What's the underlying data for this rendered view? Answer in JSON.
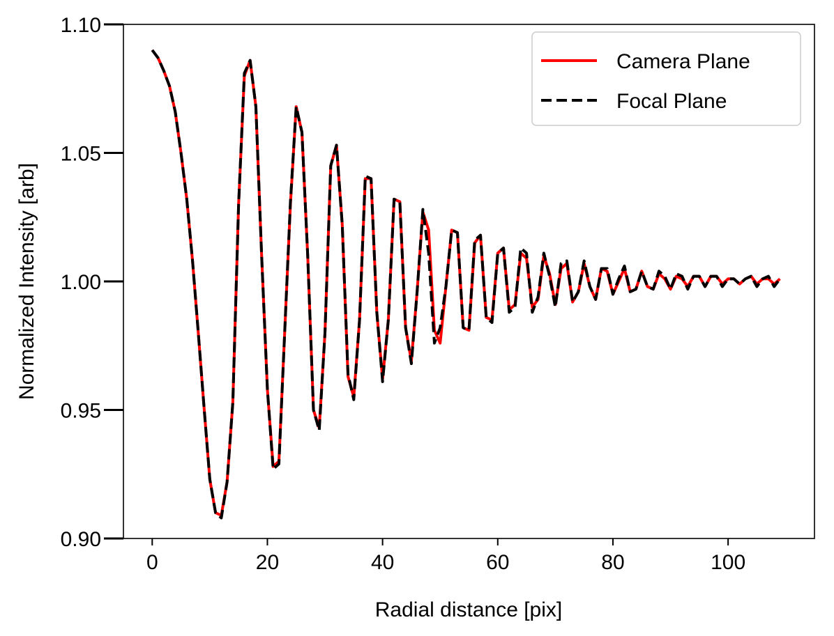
{
  "chart_data": {
    "type": "line",
    "xlabel": "Radial distance [pix]",
    "ylabel": "Normalized Intensity [arb]",
    "xlim": [
      -5,
      115
    ],
    "ylim": [
      0.9,
      1.1
    ],
    "x_ticks": [
      0,
      20,
      40,
      60,
      80,
      100
    ],
    "x_tick_labels": [
      "0",
      "20",
      "40",
      "60",
      "80",
      "100"
    ],
    "y_ticks": [
      0.9,
      0.95,
      1.0,
      1.05,
      1.1
    ],
    "y_tick_labels": [
      "0.90",
      "0.95",
      "1.00",
      "1.05",
      "1.10"
    ],
    "grid": false,
    "legend": {
      "position": "top-right"
    },
    "x": [
      0,
      1,
      2,
      3,
      4,
      5,
      6,
      7,
      8,
      9,
      10,
      11,
      12,
      13,
      14,
      15,
      16,
      17,
      18,
      19,
      20,
      21,
      22,
      23,
      24,
      25,
      26,
      27,
      28,
      29,
      30,
      31,
      32,
      33,
      34,
      35,
      36,
      37,
      38,
      39,
      40,
      41,
      42,
      43,
      44,
      45,
      46,
      47,
      48,
      49,
      50,
      51,
      52,
      53,
      54,
      55,
      56,
      57,
      58,
      59,
      60,
      61,
      62,
      63,
      64,
      65,
      66,
      67,
      68,
      69,
      70,
      71,
      72,
      73,
      74,
      75,
      76,
      77,
      78,
      79,
      80,
      81,
      82,
      83,
      84,
      85,
      86,
      87,
      88,
      89,
      90,
      91,
      92,
      93,
      94,
      95,
      96,
      97,
      98,
      99,
      100,
      101,
      102,
      103,
      104,
      105,
      106,
      107,
      108,
      109
    ],
    "series": [
      {
        "name": "Camera Plane",
        "color": "#ff0000",
        "style": "solid",
        "values": [
          1.09,
          1.087,
          1.082,
          1.076,
          1.066,
          1.05,
          1.032,
          1.008,
          0.98,
          0.951,
          0.923,
          0.91,
          0.909,
          0.922,
          0.953,
          1.03,
          1.08,
          1.086,
          1.068,
          1.01,
          0.958,
          0.928,
          0.93,
          0.98,
          1.03,
          1.068,
          1.058,
          1.01,
          0.95,
          0.943,
          0.98,
          1.045,
          1.053,
          1.022,
          0.963,
          0.955,
          0.985,
          1.04,
          1.04,
          0.988,
          0.962,
          0.985,
          1.032,
          1.031,
          0.982,
          0.969,
          0.996,
          1.027,
          1.02,
          0.981,
          0.976,
          0.998,
          1.02,
          1.019,
          0.982,
          0.981,
          1.015,
          1.018,
          0.986,
          0.985,
          1.011,
          1.013,
          0.989,
          0.991,
          1.011,
          1.009,
          0.99,
          0.993,
          1.01,
          1.003,
          0.991,
          1.005,
          1.007,
          0.992,
          0.996,
          1.007,
          0.998,
          0.993,
          1.005,
          1.004,
          0.995,
          1.0,
          1.005,
          0.996,
          0.997,
          1.004,
          0.998,
          0.997,
          1.003,
          1.001,
          0.997,
          1.002,
          1.001,
          0.998,
          1.002,
          1.002,
          0.998,
          1.002,
          1.002,
          0.999,
          1.001,
          1.001,
          0.999,
          1.001,
          1.002,
          0.999,
          1.001,
          1.001,
          0.999,
          1.001
        ]
      },
      {
        "name": "Focal Plane",
        "color": "#000000",
        "style": "dashed",
        "values": [
          1.09,
          1.087,
          1.082,
          1.076,
          1.066,
          1.05,
          1.032,
          1.008,
          0.98,
          0.951,
          0.923,
          0.91,
          0.908,
          0.922,
          0.953,
          1.03,
          1.081,
          1.086,
          1.068,
          1.01,
          0.958,
          0.927,
          0.929,
          0.98,
          1.031,
          1.068,
          1.058,
          1.01,
          0.95,
          0.942,
          0.98,
          1.045,
          1.053,
          1.022,
          0.964,
          0.954,
          0.985,
          1.041,
          1.04,
          0.988,
          0.961,
          0.985,
          1.032,
          1.031,
          0.982,
          0.968,
          0.996,
          1.028,
          1.011,
          0.976,
          0.982,
          0.998,
          1.02,
          1.019,
          0.982,
          0.981,
          1.016,
          1.018,
          0.986,
          0.984,
          1.011,
          1.013,
          0.988,
          0.99,
          1.013,
          1.011,
          0.988,
          0.994,
          1.011,
          1.002,
          0.99,
          1.007,
          1.008,
          0.992,
          0.996,
          1.008,
          0.998,
          0.993,
          1.005,
          1.005,
          0.995,
          1.001,
          1.006,
          0.996,
          0.997,
          1.004,
          0.998,
          0.997,
          1.004,
          1.002,
          0.997,
          1.003,
          1.002,
          0.997,
          1.002,
          1.002,
          0.998,
          1.002,
          1.002,
          0.998,
          1.001,
          1.001,
          0.999,
          1.001,
          1.002,
          0.998,
          1.001,
          1.002,
          0.998,
          1.001
        ]
      }
    ]
  }
}
